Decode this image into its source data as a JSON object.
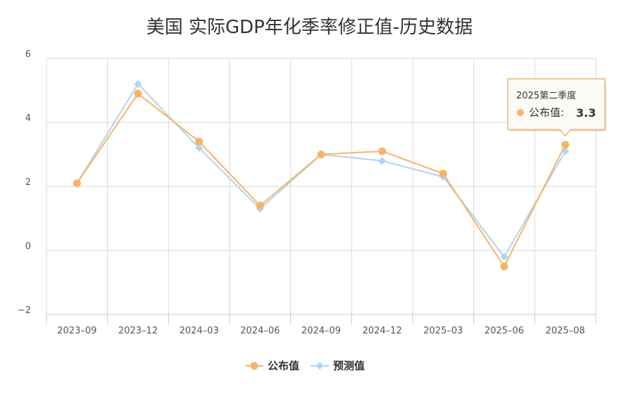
{
  "chart_data": {
    "type": "line",
    "title": "美国 实际GDP年化季率修正值-历史数据",
    "categories": [
      "2023-09",
      "2023-12",
      "2024-03",
      "2024-06",
      "2024-09",
      "2024-12",
      "2025-03",
      "2025-06",
      "2025-08"
    ],
    "series": [
      {
        "name": "公布值",
        "color": "#f5b567",
        "marker": "circle",
        "values": [
          2.1,
          4.9,
          3.4,
          1.4,
          3.0,
          3.1,
          2.4,
          -0.5,
          3.3
        ]
      },
      {
        "name": "预测值",
        "color": "#b3d4ee",
        "marker": "diamond",
        "values": [
          2.1,
          5.2,
          3.2,
          1.3,
          3.0,
          2.8,
          2.3,
          -0.2,
          3.1
        ]
      }
    ],
    "ylim": [
      -2,
      6
    ],
    "yticks": [
      -2,
      0,
      2,
      4,
      6
    ],
    "xlabel": "",
    "ylabel": "",
    "grid": true,
    "legend": "bottom-center",
    "tooltip": {
      "period": "2025第二季度",
      "series": "公布值",
      "value": "3.3"
    }
  }
}
